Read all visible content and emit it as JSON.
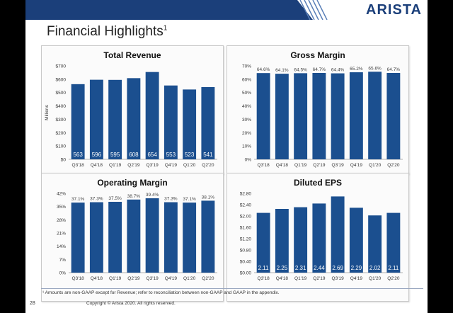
{
  "logo": {
    "text": "ARISTA"
  },
  "page": {
    "title": "Financial Highlights",
    "title_sup": "1",
    "footnote": "¹ Amounts are non-GAAP except for Revenue; refer to reconciliation between non-GAAP and GAAP in the appendix.",
    "page_number": "28",
    "copyright": "Copyright © Arista 2020. All rights reserved."
  },
  "colors": {
    "header": "#1b3f7a",
    "bar": "#1b4f8f",
    "stripe": "#5a7fb8",
    "bar_label": "#ffffff",
    "data_label": "#444444"
  },
  "chart_data": [
    {
      "type": "bar",
      "title": "Total Revenue",
      "ylabel": "Millions",
      "categories": [
        "Q3'18",
        "Q4'18",
        "Q1'19",
        "Q2'19",
        "Q3'19",
        "Q4'19",
        "Q1'20",
        "Q2'20"
      ],
      "values": [
        563,
        596,
        595,
        608,
        654,
        553,
        523,
        541
      ],
      "value_labels": [
        "563",
        "596",
        "595",
        "608",
        "654",
        "553",
        "523",
        "541"
      ],
      "label_position": "inside-bottom",
      "ylim": [
        0,
        700
      ],
      "y_ticks": [
        0,
        100,
        200,
        300,
        400,
        500,
        600,
        700
      ],
      "y_tick_labels": [
        "$0",
        "$100",
        "$200",
        "$300",
        "$400",
        "$500",
        "$600",
        "$700"
      ],
      "grid": false
    },
    {
      "type": "bar",
      "title": "Gross Margin",
      "ylabel": "",
      "categories": [
        "Q3'18",
        "Q4'18",
        "Q1'19",
        "Q2'19",
        "Q3'19",
        "Q4'19",
        "Q1'20",
        "Q2'20"
      ],
      "values": [
        64.6,
        64.1,
        64.5,
        64.7,
        64.4,
        65.2,
        65.6,
        64.7
      ],
      "value_labels": [
        "64.6%",
        "64.1%",
        "64.5%",
        "64.7%",
        "64.4%",
        "65.2%",
        "65.6%",
        "64.7%"
      ],
      "label_position": "above",
      "ylim": [
        0,
        70
      ],
      "y_ticks": [
        0,
        10,
        20,
        30,
        40,
        50,
        60,
        70
      ],
      "y_tick_labels": [
        "0%",
        "10%",
        "20%",
        "30%",
        "40%",
        "50%",
        "60%",
        "70%"
      ],
      "grid": false
    },
    {
      "type": "bar",
      "title": "Operating Margin",
      "ylabel": "",
      "categories": [
        "Q3'18",
        "Q4'18",
        "Q1'19",
        "Q2'19",
        "Q3'19",
        "Q4'19",
        "Q1'20",
        "Q2'20"
      ],
      "values": [
        37.1,
        37.3,
        37.5,
        38.7,
        39.4,
        37.3,
        37.1,
        38.1
      ],
      "value_labels": [
        "37.1%",
        "37.3%",
        "37.5%",
        "38.7%",
        "39.4%",
        "37.3%",
        "37.1%",
        "38.1%"
      ],
      "label_position": "above",
      "ylim": [
        0,
        42
      ],
      "y_ticks": [
        0,
        7,
        14,
        21,
        28,
        35,
        42
      ],
      "y_tick_labels": [
        "0%",
        "7%",
        "14%",
        "21%",
        "28%",
        "35%",
        "42%"
      ],
      "grid": false
    },
    {
      "type": "bar",
      "title": "Diluted EPS",
      "ylabel": "",
      "categories": [
        "Q3'18",
        "Q4'18",
        "Q1'19",
        "Q2'19",
        "Q3'19",
        "Q4'19",
        "Q1'20",
        "Q2'20"
      ],
      "values": [
        2.11,
        2.25,
        2.31,
        2.44,
        2.69,
        2.29,
        2.02,
        2.11
      ],
      "value_labels": [
        "2.11",
        "2.25",
        "2.31",
        "2.44",
        "2.69",
        "2.29",
        "2.02",
        "2.11"
      ],
      "label_position": "inside-bottom",
      "ylim": [
        0,
        2.8
      ],
      "y_ticks": [
        0,
        0.4,
        0.8,
        1.2,
        1.6,
        2.0,
        2.4,
        2.8
      ],
      "y_tick_labels": [
        "$0.00",
        "$0.40",
        "$0.80",
        "$1.20",
        "$1.60",
        "$2.00",
        "$2.40",
        "$2.80"
      ],
      "grid": false
    }
  ]
}
